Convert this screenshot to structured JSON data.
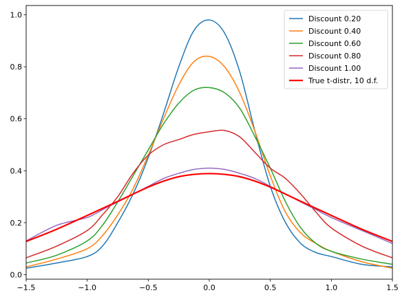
{
  "chart_data": {
    "type": "line",
    "title": "",
    "xlabel": "",
    "ylabel": "",
    "xlim": [
      -1.5,
      1.5
    ],
    "ylim": [
      0,
      1.0
    ],
    "xticks": [
      -1.5,
      -1.0,
      -0.5,
      0.0,
      0.5,
      1.0,
      1.5
    ],
    "xtick_labels": [
      "−1.5",
      "−1.0",
      "−0.5",
      "0.0",
      "0.5",
      "1.0",
      "1.5"
    ],
    "yticks": [
      0.0,
      0.2,
      0.4,
      0.6,
      0.8,
      1.0
    ],
    "ytick_labels": [
      "0.0",
      "0.2",
      "0.4",
      "0.6",
      "0.8",
      "1.0"
    ],
    "grid": false,
    "legend_position": "top-right",
    "x": [
      -1.5,
      -1.25,
      -1.0,
      -0.875,
      -0.75,
      -0.625,
      -0.5,
      -0.375,
      -0.25,
      -0.125,
      0.0,
      0.125,
      0.25,
      0.375,
      0.5,
      0.625,
      0.75,
      0.875,
      1.0,
      1.25,
      1.5
    ],
    "series": [
      {
        "name": "Discount 0.20",
        "color": "#1f77b4",
        "width": 1.5,
        "values": [
          0.025,
          0.045,
          0.07,
          0.11,
          0.2,
          0.31,
          0.45,
          0.62,
          0.8,
          0.94,
          0.98,
          0.93,
          0.78,
          0.55,
          0.34,
          0.2,
          0.12,
          0.085,
          0.07,
          0.04,
          0.03
        ]
      },
      {
        "name": "Discount 0.40",
        "color": "#ff7f0e",
        "width": 1.5,
        "values": [
          0.03,
          0.06,
          0.1,
          0.15,
          0.23,
          0.33,
          0.46,
          0.6,
          0.73,
          0.82,
          0.84,
          0.8,
          0.7,
          0.55,
          0.38,
          0.24,
          0.16,
          0.12,
          0.09,
          0.05,
          0.025
        ]
      },
      {
        "name": "Discount 0.60",
        "color": "#2ca02c",
        "width": 1.5,
        "values": [
          0.045,
          0.075,
          0.13,
          0.19,
          0.28,
          0.38,
          0.48,
          0.58,
          0.66,
          0.71,
          0.72,
          0.7,
          0.64,
          0.53,
          0.41,
          0.28,
          0.18,
          0.12,
          0.09,
          0.06,
          0.04
        ]
      },
      {
        "name": "Discount 0.80",
        "color": "#d62728",
        "width": 1.5,
        "values": [
          0.065,
          0.11,
          0.17,
          0.23,
          0.3,
          0.39,
          0.46,
          0.5,
          0.52,
          0.54,
          0.55,
          0.555,
          0.53,
          0.47,
          0.41,
          0.37,
          0.31,
          0.24,
          0.18,
          0.11,
          0.065
        ]
      },
      {
        "name": "Discount 1.00",
        "color": "#9467bd",
        "width": 1.5,
        "values": [
          0.13,
          0.19,
          0.22,
          0.25,
          0.28,
          0.31,
          0.34,
          0.37,
          0.39,
          0.405,
          0.41,
          0.405,
          0.39,
          0.37,
          0.34,
          0.31,
          0.28,
          0.25,
          0.22,
          0.17,
          0.12
        ]
      },
      {
        "name": "True t-distr, 10 d.f.",
        "color": "#ff0000",
        "width": 2.2,
        "values": [
          0.128,
          0.175,
          0.228,
          0.255,
          0.282,
          0.31,
          0.337,
          0.36,
          0.377,
          0.386,
          0.389,
          0.386,
          0.377,
          0.36,
          0.337,
          0.31,
          0.282,
          0.255,
          0.228,
          0.175,
          0.128
        ]
      }
    ]
  }
}
